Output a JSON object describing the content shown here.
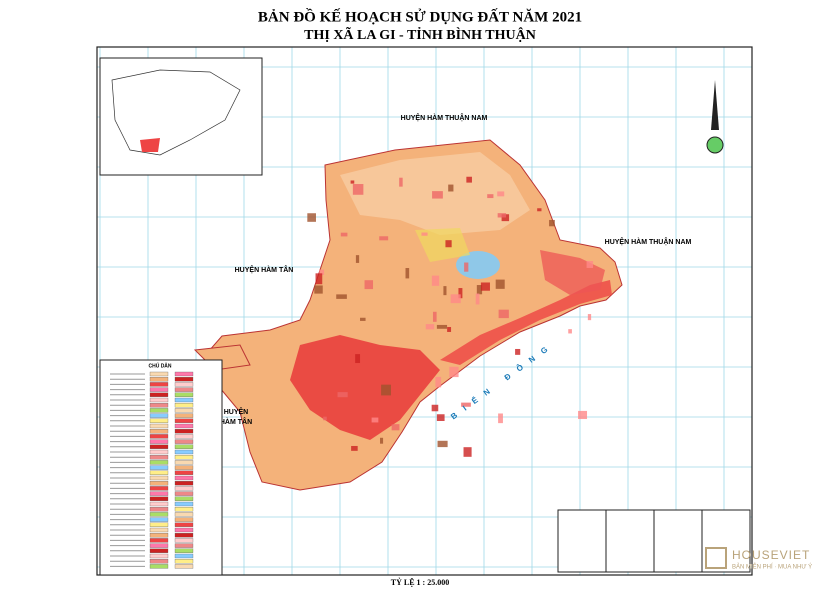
{
  "header": {
    "title": "BẢN ĐỒ KẾ HOẠCH SỬ DỤNG ĐẤT NĂM 2021",
    "subtitle": "THỊ XÃ LA GI - TỈNH BÌNH THUẬN"
  },
  "map_labels": {
    "north_east": "HUYỆN HÀM THUẬN NAM",
    "east": "HUYỆN HÀM THUẬN NAM",
    "west": "HUYỆN HÀM TÂN",
    "south_west_1": "HUYỆN",
    "south_west_2": "HÀM TÂN",
    "sea": "BIỂN ĐÔNG"
  },
  "legend": {
    "title": "CHÚ DẪN"
  },
  "scale": "TỶ LỆ 1 : 25.000",
  "watermark": {
    "brand": "HOUSEVIET",
    "tagline": "BẢN MIỄN PHÍ · MUA NHƯ Ý"
  }
}
